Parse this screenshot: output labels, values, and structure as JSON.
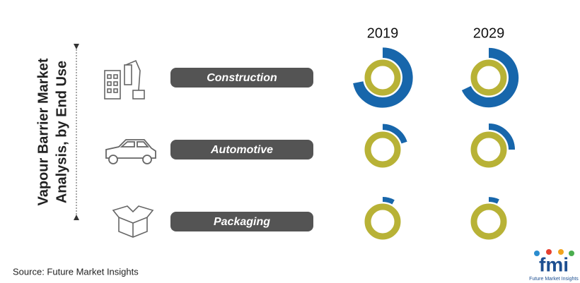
{
  "chart_data": {
    "type": "radial-bar",
    "title_lines": [
      "Vapour Barrier Market",
      "Analysis, by End Use"
    ],
    "categories": [
      "Construction",
      "Automotive",
      "Packaging"
    ],
    "series": [
      {
        "name": "2019",
        "color": "#1766ab",
        "values": [
          72,
          20,
          8
        ]
      },
      {
        "name": "2029",
        "color": "#1766ab",
        "values": [
          68,
          25,
          7
        ]
      }
    ],
    "ring_color": "#b8b236",
    "source": "Source: Future Market Insights",
    "logo": {
      "mark": "fmi",
      "name": "Future Market Insights"
    }
  }
}
